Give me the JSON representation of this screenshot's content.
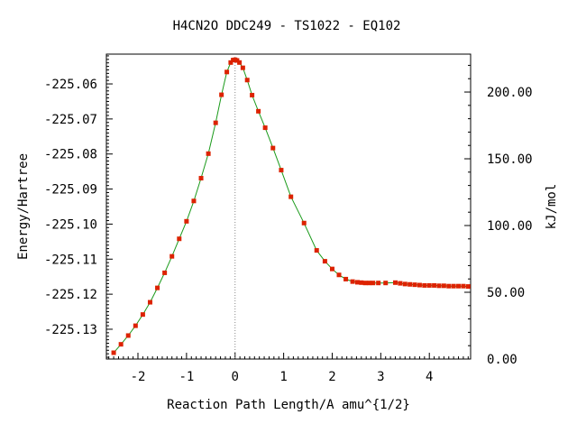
{
  "chart_data": {
    "type": "line",
    "title": "H4CN2O   DDC249 - TS1022 - EQ102",
    "xlabel": "Reaction Path Length/A amu^{1/2}",
    "ylabel": "Energy/Hartree",
    "y2label": "kJ/mol",
    "xlim": [
      -2.65,
      4.85
    ],
    "ylim": [
      -225.1385,
      -225.0515
    ],
    "y2lim": [
      0.0,
      228.4
    ],
    "x_ticks": [
      -2,
      -1,
      0,
      1,
      2,
      3,
      4
    ],
    "x_tick_labels": [
      "-2",
      "-1",
      "0",
      "1",
      "2",
      "3",
      "4"
    ],
    "y_ticks": [
      -225.06,
      -225.07,
      -225.08,
      -225.09,
      -225.1,
      -225.11,
      -225.12,
      -225.13
    ],
    "y_tick_labels": [
      "-225.06",
      "-225.07",
      "-225.08",
      "-225.09",
      "-225.10",
      "-225.11",
      "-225.12",
      "-225.13"
    ],
    "y2_ticks": [
      0,
      50,
      100,
      150,
      200
    ],
    "y2_tick_labels": [
      "0.00",
      "50.00",
      "100.00",
      "150.00",
      "200.00"
    ],
    "ts_marker_x": 0.0,
    "grid": false,
    "line_color": "#1a9a1a",
    "marker_color": "#dd2200",
    "x": [
      -2.5,
      -2.35,
      -2.2,
      -2.05,
      -1.9,
      -1.75,
      -1.6,
      -1.45,
      -1.3,
      -1.15,
      -1.0,
      -0.85,
      -0.7,
      -0.55,
      -0.4,
      -0.28,
      -0.17,
      -0.09,
      -0.04,
      0.0,
      0.04,
      0.09,
      0.16,
      0.25,
      0.35,
      0.48,
      0.62,
      0.78,
      0.95,
      1.15,
      1.42,
      1.68,
      1.85,
      2.0,
      2.14,
      2.28,
      2.42,
      2.52,
      2.6,
      2.68,
      2.76,
      2.84,
      2.95,
      3.1,
      3.3,
      3.4,
      3.5,
      3.6,
      3.7,
      3.8,
      3.9,
      4.0,
      4.1,
      4.2,
      4.3,
      4.4,
      4.5,
      4.6,
      4.7,
      4.8
    ],
    "y": [
      -225.1367,
      -225.1343,
      -225.1318,
      -225.129,
      -225.1258,
      -225.1223,
      -225.1182,
      -225.1139,
      -225.1092,
      -225.1042,
      -225.0992,
      -225.0934,
      -225.0869,
      -225.0799,
      -225.0711,
      -225.0631,
      -225.0566,
      -225.0539,
      -225.0532,
      -225.0531,
      -225.0533,
      -225.0539,
      -225.0554,
      -225.0589,
      -225.0632,
      -225.0678,
      -225.0725,
      -225.0783,
      -225.0846,
      -225.0922,
      -225.0997,
      -225.1075,
      -225.1106,
      -225.1128,
      -225.1145,
      -225.1157,
      -225.1164,
      -225.1166,
      -225.1167,
      -225.1168,
      -225.1168,
      -225.1168,
      -225.1168,
      -225.1168,
      -225.1167,
      -225.1169,
      -225.1171,
      -225.1172,
      -225.1173,
      -225.1174,
      -225.1175,
      -225.1175,
      -225.1175,
      -225.1176,
      -225.1176,
      -225.1177,
      -225.1177,
      -225.1177,
      -225.1177,
      -225.1178
    ]
  }
}
